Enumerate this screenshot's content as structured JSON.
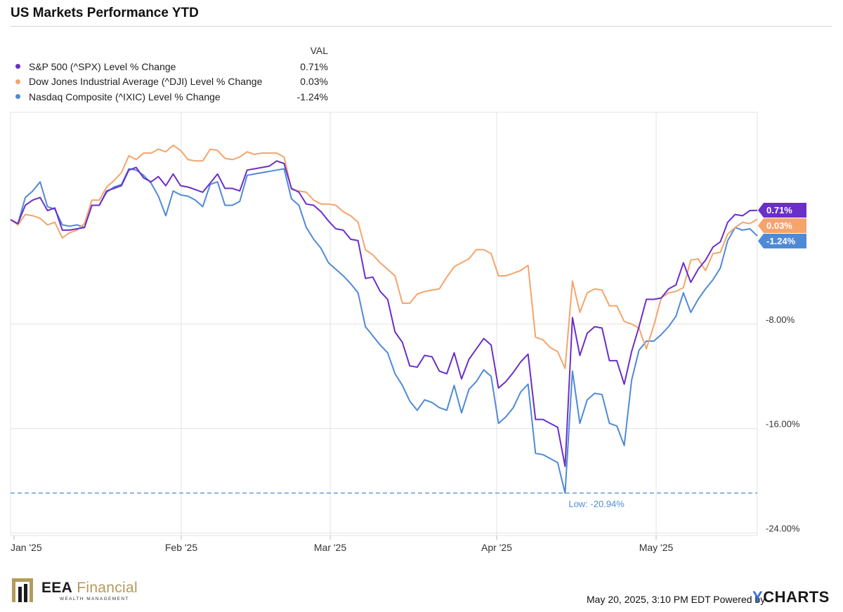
{
  "title": "US Markets Performance YTD",
  "legend": {
    "header": "VAL",
    "items": [
      {
        "label": "S&P 500 (^SPX) Level % Change",
        "value": "0.71%",
        "color": "#6a2fc8"
      },
      {
        "label": "Dow Jones Industrial Average (^DJI) Level % Change",
        "value": "0.03%",
        "color": "#f5a46c"
      },
      {
        "label": "Nasdaq Composite (^IXIC) Level % Change",
        "value": "-1.24%",
        "color": "#4f8ad6"
      }
    ]
  },
  "footer": {
    "timestamp": "May 20, 2025, 3:10 PM EDT Powered by",
    "brand_y": "Y",
    "brand_rest": "CHARTS"
  },
  "logo": {
    "name_strong": "EEA",
    "name_light": " Financial",
    "tagline": "WEALTH MANAGEMENT"
  },
  "chart_data": {
    "type": "line",
    "x_tick_labels": [
      "Jan '25",
      "Feb '25",
      "Mar '25",
      "Apr '25",
      "May '25"
    ],
    "y_tick_labels": [
      "-8.00%",
      "-16.00%",
      "-24.00%"
    ],
    "y_ticks": [
      -8,
      -16,
      -24
    ],
    "ylim": [
      -24,
      8
    ],
    "grid": true,
    "low_annotation": {
      "label": "Low: -20.94%",
      "value": -20.94
    },
    "end_labels": [
      {
        "text": "0.71%",
        "value": 0.71,
        "color": "#6a2fc8"
      },
      {
        "text": "0.03%",
        "value": 0.03,
        "color": "#f5a46c"
      },
      {
        "text": "-1.24%",
        "value": -1.24,
        "color": "#4f8ad6"
      }
    ],
    "series": [
      {
        "name": "S&P 500 (^SPX) Level % Change",
        "color": "#6a2fc8",
        "values": [
          0,
          -0.3,
          1.1,
          1.5,
          1.7,
          0.7,
          0.9,
          -0.8,
          -0.8,
          -0.7,
          -0.6,
          1.1,
          1.1,
          2.2,
          2.4,
          2.6,
          3.8,
          4.0,
          3.2,
          2.9,
          3.3,
          2.6,
          3.5,
          2.6,
          2.5,
          2.3,
          2.1,
          2.8,
          3.5,
          2.4,
          2.4,
          2.2,
          3.8,
          3.9,
          4.0,
          4.1,
          4.5,
          4.3,
          2.4,
          2.1,
          1.2,
          1.1,
          0.6,
          -0.1,
          -0.7,
          -0.8,
          -1.5,
          -1.6,
          -4.5,
          -4.4,
          -5.5,
          -6.1,
          -8.6,
          -9.4,
          -11.2,
          -11.3,
          -10.4,
          -10.5,
          -11.6,
          -11.8,
          -10.2,
          -12.2,
          -10.7,
          -9.9,
          -9.1,
          -9.6,
          -12.9,
          -12.4,
          -11.7,
          -10.9,
          -10.3,
          -15.3,
          -15.3,
          -15.6,
          -15.9,
          -18.9,
          -7.5,
          -10.4,
          -8.7,
          -8.2,
          -8.3,
          -10.8,
          -10.8,
          -12.6,
          -10.1,
          -8.2,
          -6.1,
          -6.1,
          -6.0,
          -5.3,
          -5.0,
          -3.3,
          -4.8,
          -3.8,
          -3.1,
          -2.1,
          -1.7,
          -0.2,
          0.4,
          0.3,
          0.7,
          0.71
        ]
      },
      {
        "name": "Dow Jones Industrial Average (^DJI) Level % Change",
        "color": "#f5a46c",
        "values": [
          0,
          -0.4,
          0.4,
          0.3,
          0.1,
          -0.4,
          -0.2,
          -1.4,
          -1.0,
          -0.8,
          -0.3,
          1.5,
          1.5,
          2.5,
          3.0,
          3.6,
          4.9,
          4.6,
          5.1,
          5.1,
          5.4,
          5.2,
          5.7,
          5.3,
          4.6,
          4.5,
          4.5,
          5.4,
          5.3,
          4.7,
          4.6,
          4.8,
          5.2,
          5.0,
          5.1,
          5.1,
          5.1,
          4.8,
          2.3,
          2.2,
          2.1,
          1.5,
          1.2,
          1.2,
          1.1,
          0.6,
          0.3,
          -0.2,
          -2.3,
          -2.7,
          -3.3,
          -3.8,
          -4.3,
          -6.4,
          -6.4,
          -5.7,
          -5.5,
          -5.4,
          -5.3,
          -4.4,
          -3.6,
          -3.3,
          -3.0,
          -2.3,
          -2.3,
          -2.6,
          -4.3,
          -4.3,
          -4.1,
          -3.9,
          -3.5,
          -9.0,
          -9.2,
          -9.8,
          -10.1,
          -11.4,
          -4.7,
          -7.1,
          -5.6,
          -5.3,
          -5.4,
          -6.6,
          -6.6,
          -7.8,
          -8.0,
          -8.3,
          -9.9,
          -8.1,
          -6.0,
          -5.6,
          -5.5,
          -5.2,
          -3.1,
          -3.0,
          -3.9,
          -2.6,
          -2.5,
          -1.1,
          -0.6,
          -0.2,
          -0.3,
          0.03
        ]
      },
      {
        "name": "Nasdaq Composite (^IXIC) Level % Change",
        "color": "#4f8ad6",
        "values": [
          0,
          -0.3,
          1.7,
          2.2,
          2.9,
          1.0,
          0.8,
          -0.4,
          -0.5,
          -0.4,
          -0.6,
          1.1,
          1.1,
          2.1,
          2.5,
          2.7,
          3.9,
          3.8,
          3.4,
          2.8,
          1.8,
          0.3,
          2.2,
          1.9,
          1.8,
          1.5,
          1.0,
          2.7,
          2.9,
          1.1,
          1.1,
          1.4,
          3.4,
          3.5,
          3.6,
          3.7,
          3.8,
          3.9,
          1.6,
          1.1,
          -0.6,
          -1.5,
          -2.2,
          -3.3,
          -3.8,
          -4.3,
          -4.9,
          -5.6,
          -8.2,
          -8.9,
          -9.6,
          -10.2,
          -11.8,
          -12.7,
          -13.9,
          -14.6,
          -13.8,
          -14.0,
          -14.4,
          -14.6,
          -12.7,
          -14.8,
          -13.0,
          -12.4,
          -11.5,
          -12.0,
          -15.6,
          -15.1,
          -14.4,
          -13.2,
          -12.6,
          -17.9,
          -18.0,
          -18.3,
          -18.6,
          -20.94,
          -11.6,
          -15.6,
          -13.8,
          -13.3,
          -13.4,
          -15.6,
          -15.8,
          -17.3,
          -12.3,
          -10.0,
          -9.3,
          -9.3,
          -8.8,
          -8.2,
          -7.4,
          -5.6,
          -7.1,
          -6.1,
          -5.3,
          -4.6,
          -3.7,
          -1.6,
          -0.6,
          -0.8,
          -0.7,
          -1.24
        ]
      }
    ]
  }
}
